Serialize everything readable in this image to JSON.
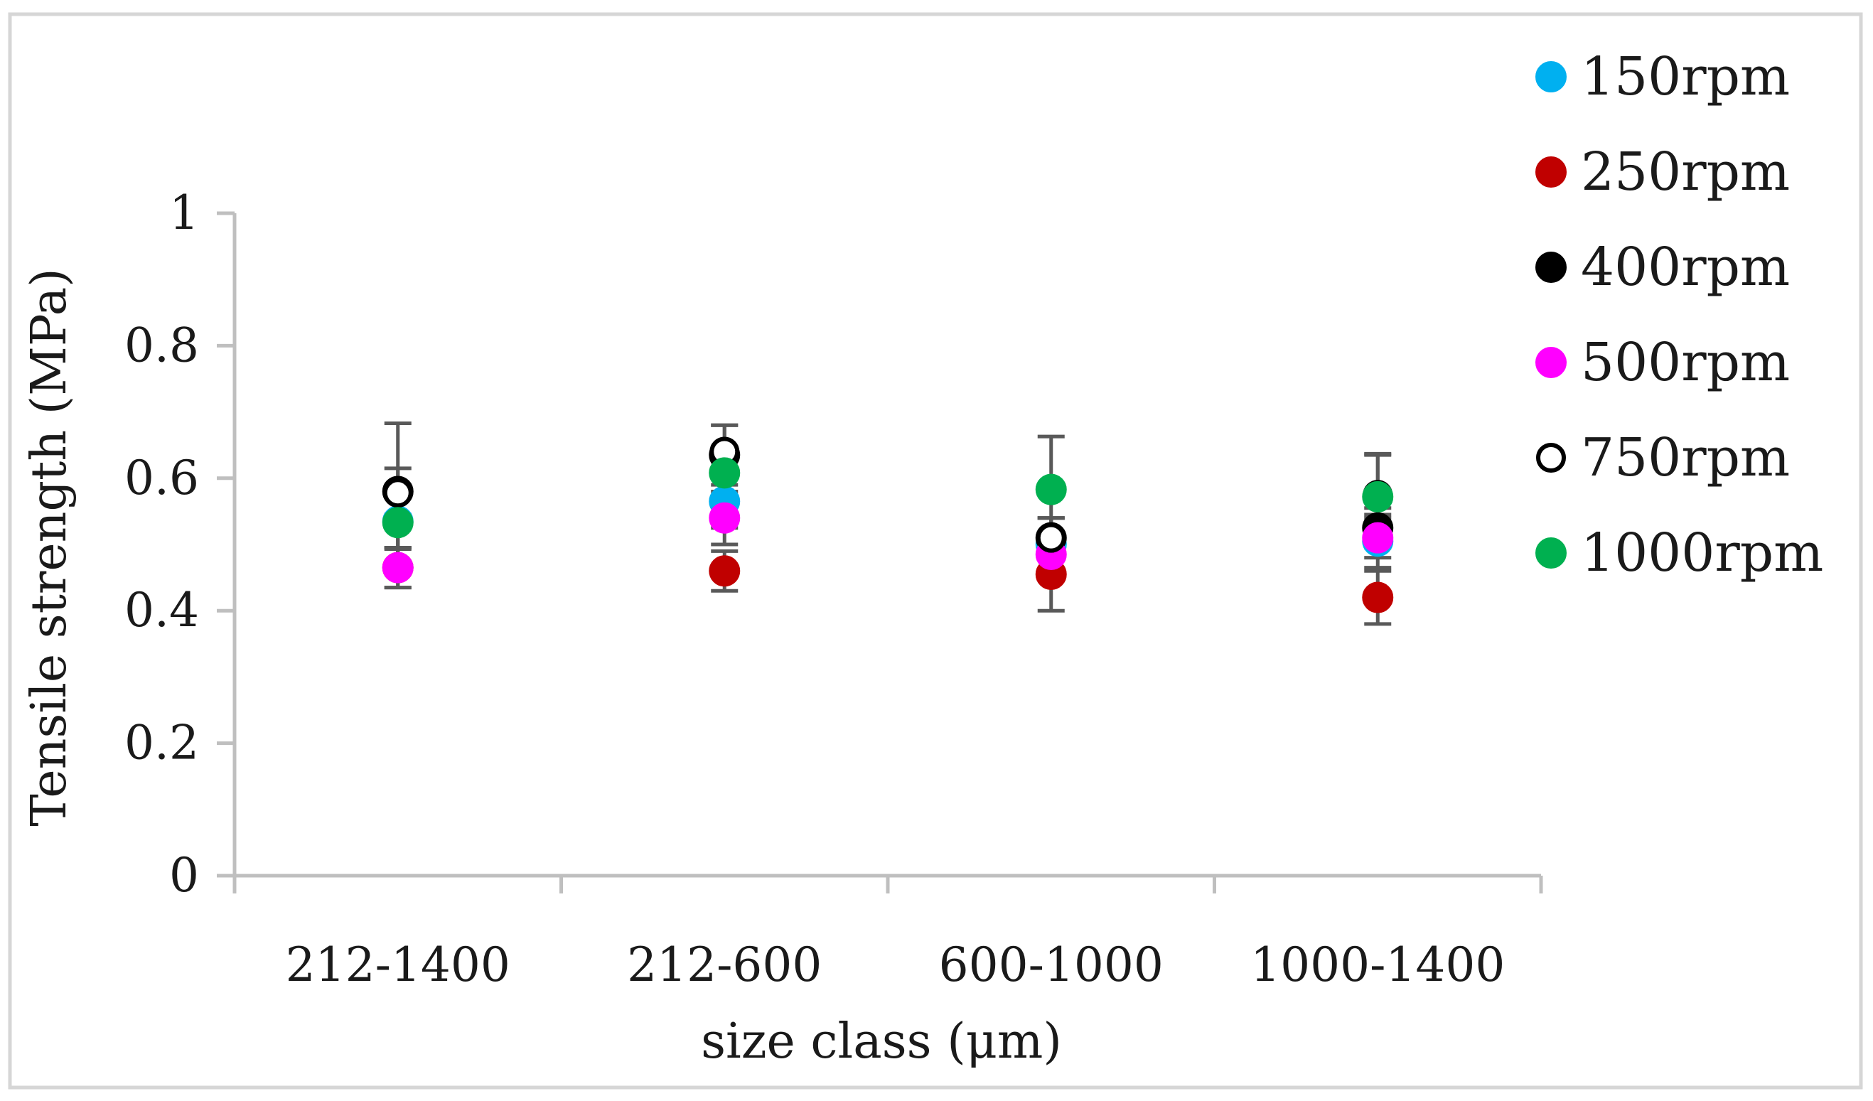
{
  "chart_data": {
    "type": "scatter",
    "title": "",
    "xlabel": "size class (μm)",
    "ylabel": "Tensile strength (MPa)",
    "ylim": [
      0,
      1
    ],
    "yticks": [
      "0",
      "0.2",
      "0.4",
      "0.6",
      "0.8",
      "1"
    ],
    "categories": [
      "212-1400",
      "212-600",
      "600-1000",
      "1000-1400"
    ],
    "legend_position": "top-right outside",
    "grid": false,
    "series": [
      {
        "name": "150rpm",
        "color": "#00b0f0",
        "fill": "filled",
        "values": [
          0.535,
          0.565,
          0.5,
          0.505
        ],
        "errors": [
          0.04,
          0.04,
          0.04,
          0.04
        ]
      },
      {
        "name": "250rpm",
        "color": "#c00000",
        "fill": "filled",
        "values": [
          0.465,
          0.46,
          0.455,
          0.42
        ],
        "errors": [
          0.03,
          0.03,
          0.055,
          0.04
        ]
      },
      {
        "name": "400rpm",
        "color": "#000000",
        "fill": "filled",
        "values": [
          0.58,
          0.635,
          0.51,
          0.525
        ],
        "errors": [
          0.035,
          0.045,
          0.03,
          0.03
        ]
      },
      {
        "name": "500rpm",
        "color": "#ff00ff",
        "fill": "filled",
        "values": [
          0.465,
          0.54,
          0.485,
          0.51
        ],
        "errors": [
          0.03,
          0.04,
          0.03,
          0.03
        ]
      },
      {
        "name": "750rpm",
        "color": "#000000",
        "fill": "open",
        "values": [
          0.578,
          0.64,
          0.51,
          0.575
        ],
        "errors": [
          0.105,
          0.04,
          0.03,
          0.06
        ]
      },
      {
        "name": "1000rpm",
        "color": "#00b050",
        "fill": "filled",
        "values": [
          0.533,
          0.608,
          0.583,
          0.572
        ],
        "errors": [
          0.04,
          0.04,
          0.08,
          0.065
        ]
      }
    ]
  }
}
